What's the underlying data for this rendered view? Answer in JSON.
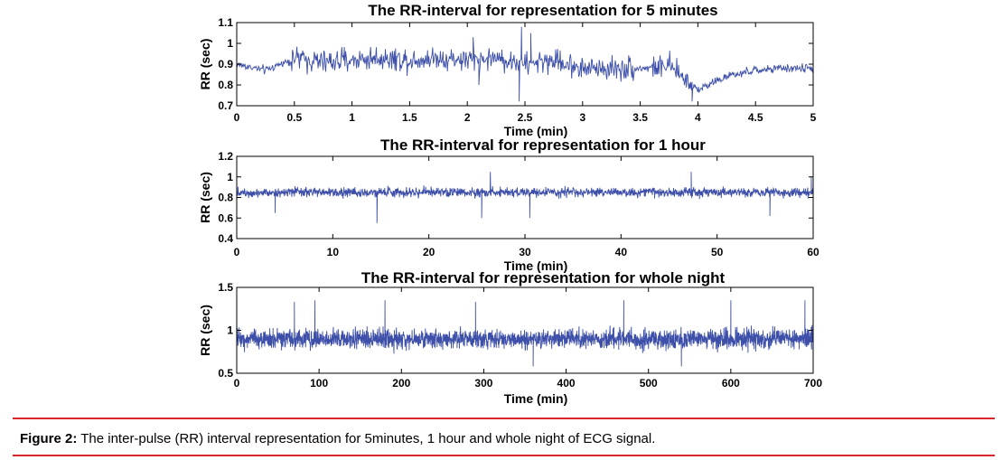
{
  "chart_data": [
    {
      "type": "line",
      "title": "The RR-interval for representation for 5 minutes",
      "xlabel": "Time (min)",
      "ylabel": "RR (sec)",
      "xlim": [
        0,
        5
      ],
      "ylim": [
        0.7,
        1.1
      ],
      "xticks": [
        "0",
        "0.5",
        "1",
        "1.5",
        "2",
        "2.5",
        "3",
        "3.5",
        "4",
        "4.5",
        "5"
      ],
      "xtick_values": [
        0,
        0.5,
        1,
        1.5,
        2,
        2.5,
        3,
        3.5,
        4,
        4.5,
        5
      ],
      "yticks": [
        "0.7",
        "0.8",
        "0.9",
        "1",
        "1.1"
      ],
      "ytick_values": [
        0.7,
        0.8,
        0.9,
        1.0,
        1.1
      ],
      "color": "#3d4fa8",
      "series": [
        {
          "x": [
            0,
            0.25,
            0.5,
            0.75,
            1,
            1.25,
            1.5,
            1.75,
            2,
            2.25,
            2.5,
            2.75,
            3,
            3.25,
            3.5,
            3.75,
            4,
            4.25,
            4.5,
            4.75,
            5
          ],
          "y": [
            0.9,
            0.87,
            0.93,
            0.91,
            0.92,
            0.93,
            0.92,
            0.93,
            0.92,
            0.93,
            0.9,
            0.92,
            0.88,
            0.88,
            0.88,
            0.89,
            0.78,
            0.84,
            0.87,
            0.88,
            0.88
          ]
        }
      ]
    },
    {
      "type": "line",
      "title": "The RR-interval for representation for 1 hour",
      "xlabel": "Time (min)",
      "ylabel": "RR (sec)",
      "xlim": [
        0,
        60
      ],
      "ylim": [
        0.4,
        1.2
      ],
      "xticks": [
        "0",
        "10",
        "20",
        "30",
        "40",
        "50",
        "60"
      ],
      "xtick_values": [
        0,
        10,
        20,
        30,
        40,
        50,
        60
      ],
      "yticks": [
        "0.4",
        "0.6",
        "0.8",
        "1",
        "1.2"
      ],
      "ytick_values": [
        0.4,
        0.6,
        0.8,
        1.0,
        1.2
      ],
      "color": "#3d4fa8",
      "series": [
        {
          "x": [
            0,
            10,
            20,
            30,
            40,
            50,
            60
          ],
          "y": [
            0.85,
            0.85,
            0.85,
            0.85,
            0.85,
            0.85,
            0.85
          ]
        }
      ]
    },
    {
      "type": "line",
      "title": "The RR-interval for representation for whole night",
      "xlabel": "Time (min)",
      "ylabel": "RR (sec)",
      "xlim": [
        0,
        700
      ],
      "ylim": [
        0.5,
        1.5
      ],
      "xticks": [
        "0",
        "100",
        "200",
        "300",
        "400",
        "500",
        "600",
        "700"
      ],
      "xtick_values": [
        0,
        100,
        200,
        300,
        400,
        500,
        600,
        700
      ],
      "yticks": [
        "0.5",
        "1",
        "1.5"
      ],
      "ytick_values": [
        0.5,
        1.0,
        1.5
      ],
      "color": "#3d4fa8",
      "series": [
        {
          "x": [
            0,
            100,
            200,
            300,
            400,
            500,
            600,
            700
          ],
          "y": [
            0.9,
            0.9,
            0.9,
            0.9,
            0.9,
            0.9,
            0.9,
            0.9
          ]
        }
      ]
    }
  ],
  "caption": {
    "label": "Figure 2:",
    "text": " The inter-pulse (RR) interval representation for 5minutes, 1 hour and whole night of ECG signal."
  }
}
